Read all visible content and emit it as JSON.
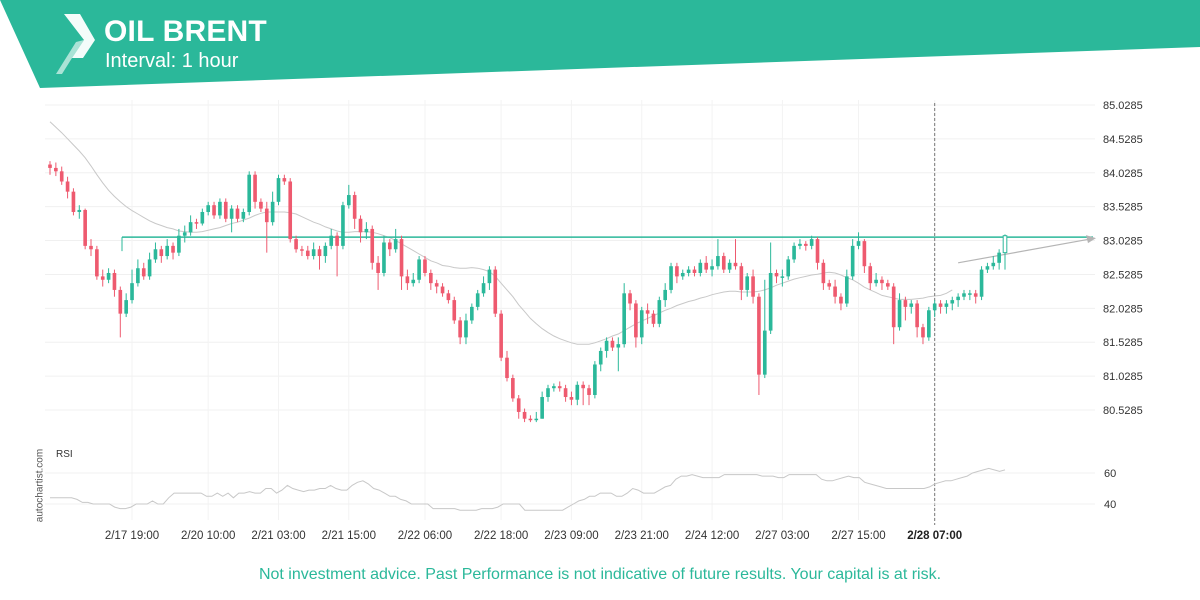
{
  "header": {
    "title": "OIL BRENT",
    "interval": "Interval: 1 hour",
    "brand_color": "#2bb89a",
    "logo": "autochartist-logo"
  },
  "watermark": "autochartist.com",
  "disclaimer": "Not investment advice. Past Performance is not indicative of future results. Your capital is at risk.",
  "chart_data": {
    "type": "candlestick",
    "title": "OIL BRENT",
    "subtitle": "Interval: 1 hour",
    "price_axis": {
      "ticks": [
        "85.0285",
        "84.5285",
        "84.0285",
        "83.5285",
        "83.0285",
        "82.5285",
        "82.0285",
        "81.5285",
        "81.0285",
        "80.5285"
      ],
      "range": [
        80.2,
        85.1
      ]
    },
    "time_axis": {
      "labels": [
        "2/17 19:00",
        "2/20 10:00",
        "2/21 03:00",
        "2/21 15:00",
        "2/22 06:00",
        "2/22 18:00",
        "2/23 09:00",
        "2/23 21:00",
        "2/24 12:00",
        "2/27 03:00",
        "2/27 15:00",
        "2/28 07:00"
      ],
      "label_index": [
        14,
        27,
        39,
        51,
        64,
        77,
        89,
        101,
        113,
        125,
        138,
        151
      ],
      "highlight_label": "2/28 07:00"
    },
    "resistance_level": 83.08,
    "resistance_color": "#2bb89a",
    "projection_target": 83.08,
    "candles": [
      [
        84.15,
        84.1,
        84.2,
        84.0
      ],
      [
        84.1,
        84.05,
        84.18,
        83.98
      ],
      [
        84.05,
        83.9,
        84.12,
        83.85
      ],
      [
        83.9,
        83.75,
        83.97,
        83.65
      ],
      [
        83.75,
        83.45,
        83.8,
        83.4
      ],
      [
        83.45,
        83.48,
        83.55,
        83.35
      ],
      [
        83.48,
        82.95,
        83.5,
        82.9
      ],
      [
        82.95,
        82.9,
        83.05,
        82.8
      ],
      [
        82.9,
        82.5,
        82.95,
        82.45
      ],
      [
        82.5,
        82.45,
        82.6,
        82.35
      ],
      [
        82.45,
        82.55,
        82.62,
        82.4
      ],
      [
        82.55,
        82.3,
        82.6,
        82.2
      ],
      [
        82.3,
        81.95,
        82.35,
        81.6
      ],
      [
        81.95,
        82.15,
        82.25,
        81.9
      ],
      [
        82.15,
        82.4,
        82.6,
        82.1
      ],
      [
        82.4,
        82.62,
        82.75,
        82.35
      ],
      [
        82.62,
        82.5,
        82.7,
        82.45
      ],
      [
        82.5,
        82.75,
        82.85,
        82.45
      ],
      [
        82.75,
        82.9,
        83.0,
        82.7
      ],
      [
        82.9,
        82.8,
        82.95,
        82.7
      ],
      [
        82.8,
        82.95,
        83.05,
        82.75
      ],
      [
        82.95,
        82.85,
        83.0,
        82.75
      ],
      [
        82.85,
        83.1,
        83.2,
        82.8
      ],
      [
        83.1,
        83.15,
        83.25,
        83.0
      ],
      [
        83.15,
        83.3,
        83.4,
        83.1
      ],
      [
        83.3,
        83.28,
        83.35,
        83.2
      ],
      [
        83.28,
        83.45,
        83.5,
        83.25
      ],
      [
        83.45,
        83.55,
        83.6,
        83.4
      ],
      [
        83.55,
        83.4,
        83.6,
        83.35
      ],
      [
        83.4,
        83.6,
        83.65,
        83.35
      ],
      [
        83.6,
        83.35,
        83.65,
        83.3
      ],
      [
        83.35,
        83.5,
        83.55,
        83.15
      ],
      [
        83.5,
        83.35,
        83.55,
        83.3
      ],
      [
        83.35,
        83.45,
        83.5,
        83.3
      ],
      [
        83.45,
        84.0,
        84.05,
        83.4
      ],
      [
        84.0,
        83.6,
        84.05,
        83.5
      ],
      [
        83.6,
        83.5,
        83.65,
        83.45
      ],
      [
        83.5,
        83.3,
        83.6,
        82.85
      ],
      [
        83.3,
        83.6,
        83.75,
        83.25
      ],
      [
        83.6,
        83.95,
        84.0,
        83.55
      ],
      [
        83.95,
        83.9,
        84.0,
        83.85
      ],
      [
        83.9,
        83.05,
        83.95,
        83.0
      ],
      [
        83.05,
        82.9,
        83.1,
        82.85
      ],
      [
        82.9,
        82.88,
        82.95,
        82.8
      ],
      [
        82.88,
        82.8,
        82.95,
        82.75
      ],
      [
        82.8,
        82.9,
        83.0,
        82.75
      ],
      [
        82.9,
        82.8,
        82.95,
        82.6
      ],
      [
        82.8,
        82.95,
        83.0,
        82.7
      ],
      [
        82.95,
        83.1,
        83.2,
        82.9
      ],
      [
        83.1,
        82.95,
        83.15,
        82.5
      ],
      [
        82.95,
        83.55,
        83.6,
        82.9
      ],
      [
        83.55,
        83.7,
        83.85,
        83.5
      ],
      [
        83.7,
        83.35,
        83.75,
        83.2
      ],
      [
        83.35,
        83.15,
        83.4,
        83.0
      ],
      [
        83.15,
        83.2,
        83.3,
        83.05
      ],
      [
        83.2,
        82.7,
        83.25,
        82.6
      ],
      [
        82.7,
        82.55,
        82.8,
        82.3
      ],
      [
        82.55,
        83.0,
        83.1,
        82.5
      ],
      [
        83.0,
        82.9,
        83.05,
        82.8
      ],
      [
        82.9,
        83.05,
        83.2,
        82.85
      ],
      [
        83.05,
        82.5,
        83.1,
        82.3
      ],
      [
        82.5,
        82.4,
        82.6,
        82.3
      ],
      [
        82.4,
        82.45,
        82.55,
        82.35
      ],
      [
        82.45,
        82.75,
        82.8,
        82.4
      ],
      [
        82.75,
        82.55,
        82.8,
        82.5
      ],
      [
        82.55,
        82.4,
        82.6,
        82.3
      ],
      [
        82.4,
        82.35,
        82.45,
        82.25
      ],
      [
        82.35,
        82.25,
        82.4,
        82.2
      ],
      [
        82.25,
        82.15,
        82.3,
        82.1
      ],
      [
        82.15,
        81.85,
        82.2,
        81.8
      ],
      [
        81.85,
        81.6,
        81.9,
        81.5
      ],
      [
        81.6,
        81.85,
        81.95,
        81.5
      ],
      [
        81.85,
        82.05,
        82.1,
        81.8
      ],
      [
        82.05,
        82.25,
        82.3,
        82.0
      ],
      [
        82.25,
        82.4,
        82.5,
        82.2
      ],
      [
        82.4,
        82.6,
        82.65,
        82.3
      ],
      [
        82.6,
        81.95,
        82.65,
        81.9
      ],
      [
        81.95,
        81.3,
        82.0,
        81.25
      ],
      [
        81.3,
        81.0,
        81.4,
        80.95
      ],
      [
        81.0,
        80.7,
        81.05,
        80.65
      ],
      [
        80.7,
        80.5,
        80.75,
        80.4
      ],
      [
        80.5,
        80.4,
        80.55,
        80.35
      ],
      [
        80.4,
        80.38,
        80.45,
        80.35
      ],
      [
        80.38,
        80.4,
        80.5,
        80.35
      ],
      [
        80.4,
        80.72,
        80.8,
        80.4
      ],
      [
        80.72,
        80.85,
        80.9,
        80.65
      ],
      [
        80.85,
        80.88,
        80.92,
        80.8
      ],
      [
        80.88,
        80.85,
        80.95,
        80.8
      ],
      [
        80.85,
        80.72,
        80.9,
        80.65
      ],
      [
        80.72,
        80.68,
        80.8,
        80.6
      ],
      [
        80.68,
        80.9,
        80.95,
        80.6
      ],
      [
        80.9,
        80.85,
        80.95,
        80.6
      ],
      [
        80.85,
        80.75,
        80.9,
        80.6
      ],
      [
        80.75,
        81.2,
        81.25,
        80.7
      ],
      [
        81.2,
        81.4,
        81.45,
        81.1
      ],
      [
        81.4,
        81.55,
        81.6,
        81.3
      ],
      [
        81.55,
        81.45,
        81.6,
        81.4
      ],
      [
        81.45,
        81.5,
        81.6,
        81.1
      ],
      [
        81.5,
        82.25,
        82.4,
        81.45
      ],
      [
        82.25,
        82.1,
        82.3,
        82.0
      ],
      [
        82.1,
        81.6,
        82.15,
        81.45
      ],
      [
        81.6,
        82.0,
        82.05,
        81.5
      ],
      [
        82.0,
        81.95,
        82.1,
        81.8
      ],
      [
        81.95,
        81.8,
        82.0,
        81.75
      ],
      [
        81.8,
        82.15,
        82.2,
        81.75
      ],
      [
        82.15,
        82.3,
        82.4,
        82.05
      ],
      [
        82.3,
        82.65,
        82.7,
        82.25
      ],
      [
        82.65,
        82.5,
        82.7,
        82.4
      ],
      [
        82.5,
        82.55,
        82.6,
        82.45
      ],
      [
        82.55,
        82.6,
        82.65,
        82.5
      ],
      [
        82.6,
        82.55,
        82.65,
        82.5
      ],
      [
        82.55,
        82.7,
        82.75,
        82.5
      ],
      [
        82.7,
        82.6,
        82.8,
        82.55
      ],
      [
        82.6,
        82.65,
        82.75,
        82.5
      ],
      [
        82.65,
        82.8,
        83.05,
        82.6
      ],
      [
        82.8,
        82.6,
        82.85,
        82.55
      ],
      [
        82.6,
        82.7,
        82.75,
        82.55
      ],
      [
        82.7,
        82.65,
        83.05,
        82.6
      ],
      [
        82.65,
        82.3,
        82.7,
        82.15
      ],
      [
        82.3,
        82.5,
        82.55,
        82.2
      ],
      [
        82.5,
        82.2,
        82.6,
        82.1
      ],
      [
        82.2,
        81.05,
        82.25,
        80.75
      ],
      [
        81.05,
        81.7,
        82.45,
        81.0
      ],
      [
        81.7,
        82.55,
        83.0,
        81.65
      ],
      [
        82.55,
        82.5,
        82.6,
        82.4
      ],
      [
        82.5,
        82.5,
        82.6,
        82.35
      ],
      [
        82.5,
        82.75,
        82.8,
        82.45
      ],
      [
        82.75,
        82.95,
        83.0,
        82.7
      ],
      [
        82.95,
        82.98,
        83.05,
        82.9
      ],
      [
        82.98,
        82.95,
        83.02,
        82.88
      ],
      [
        82.95,
        83.05,
        83.1,
        82.9
      ],
      [
        83.05,
        82.7,
        83.08,
        82.6
      ],
      [
        82.7,
        82.4,
        82.75,
        82.3
      ],
      [
        82.4,
        82.35,
        82.45,
        82.3
      ],
      [
        82.35,
        82.2,
        82.45,
        82.1
      ],
      [
        82.2,
        82.1,
        82.25,
        82.0
      ],
      [
        82.1,
        82.5,
        82.6,
        82.05
      ],
      [
        82.5,
        82.95,
        83.05,
        82.45
      ],
      [
        82.95,
        83.02,
        83.15,
        82.9
      ],
      [
        83.02,
        82.65,
        83.05,
        82.55
      ],
      [
        82.65,
        82.4,
        82.7,
        82.3
      ],
      [
        82.4,
        82.45,
        82.55,
        82.35
      ],
      [
        82.45,
        82.4,
        82.5,
        82.3
      ],
      [
        82.4,
        82.35,
        82.45,
        82.3
      ],
      [
        82.35,
        81.75,
        82.4,
        81.5
      ],
      [
        81.75,
        82.15,
        82.25,
        81.7
      ],
      [
        82.15,
        82.05,
        82.2,
        81.85
      ],
      [
        82.05,
        82.1,
        82.15,
        81.95
      ],
      [
        82.1,
        81.75,
        82.15,
        81.6
      ],
      [
        81.75,
        81.6,
        81.8,
        81.5
      ],
      [
        81.6,
        82.0,
        82.05,
        81.55
      ],
      [
        82.0,
        82.1,
        82.15,
        81.9
      ],
      [
        82.1,
        82.05,
        82.15,
        81.95
      ],
      [
        82.05,
        82.1,
        82.15,
        81.95
      ],
      [
        82.1,
        82.15,
        82.2,
        82.0
      ],
      [
        82.15,
        82.2,
        82.25,
        82.05
      ],
      [
        82.2,
        82.25,
        82.3,
        82.15
      ],
      [
        82.25,
        82.25,
        82.3,
        82.15
      ],
      [
        82.25,
        82.2,
        82.3,
        82.1
      ],
      [
        82.2,
        82.6,
        82.65,
        82.15
      ],
      [
        82.6,
        82.65,
        82.7,
        82.55
      ],
      [
        82.65,
        82.7,
        82.8,
        82.6
      ],
      [
        82.7,
        82.85,
        82.9,
        82.6
      ],
      [
        82.85,
        83.1,
        83.12,
        82.6
      ]
    ],
    "moving_average": [
      84.78,
      84.7,
      84.62,
      84.53,
      84.44,
      84.35,
      84.25,
      84.13,
      84.0,
      83.88,
      83.77,
      83.68,
      83.6,
      83.53,
      83.47,
      83.42,
      83.37,
      83.32,
      83.28,
      83.25,
      83.22,
      83.2,
      83.17,
      83.16,
      83.15,
      83.15,
      83.16,
      83.18,
      83.2,
      83.22,
      83.25,
      83.28,
      83.3,
      83.33,
      83.36,
      83.4,
      83.43,
      83.45,
      83.45,
      83.45,
      83.45,
      83.44,
      83.42,
      83.38,
      83.34,
      83.3,
      83.27,
      83.23,
      83.2,
      83.17,
      83.15,
      83.15,
      83.16,
      83.16,
      83.16,
      83.15,
      83.13,
      83.1,
      83.07,
      83.03,
      82.98,
      82.93,
      82.88,
      82.83,
      82.78,
      82.73,
      82.7,
      82.66,
      82.65,
      82.63,
      82.62,
      82.62,
      82.63,
      82.62,
      82.6,
      82.57,
      82.5,
      82.4,
      82.3,
      82.2,
      82.08,
      81.98,
      81.88,
      81.8,
      81.73,
      81.67,
      81.62,
      81.58,
      81.55,
      81.52,
      81.5,
      81.5,
      81.5,
      81.52,
      81.55,
      81.58,
      81.62,
      81.65,
      81.7,
      81.75,
      81.8,
      81.84,
      81.88,
      81.92,
      81.96,
      82.0,
      82.03,
      82.07,
      82.1,
      82.13,
      82.15,
      82.18,
      82.2,
      82.23,
      82.25,
      82.27,
      82.28,
      82.28,
      82.27,
      82.27,
      82.27,
      82.28,
      82.3,
      82.33,
      82.37,
      82.4,
      82.43,
      82.46,
      82.48,
      82.5,
      82.52,
      82.53,
      82.55,
      82.56,
      82.55,
      82.52,
      82.48,
      82.45,
      82.4,
      82.34,
      82.3,
      82.26,
      82.22,
      82.2,
      82.18,
      82.16,
      82.16,
      82.16,
      82.17,
      82.18,
      82.2,
      82.21,
      82.22,
      82.25,
      82.3
    ],
    "rsi": {
      "label": "RSI",
      "ticks": [
        "60",
        "40"
      ],
      "range": [
        25,
        75
      ],
      "values": [
        44,
        44,
        44,
        44,
        44,
        43,
        41,
        41,
        40,
        40,
        40,
        40,
        38,
        37,
        37,
        38,
        40,
        40,
        40,
        42,
        40,
        40,
        44,
        47,
        47,
        47,
        47,
        47,
        47,
        45,
        45,
        47,
        45,
        47,
        44,
        47,
        47,
        48,
        47,
        47,
        50,
        50,
        47,
        49,
        52,
        50,
        49,
        48,
        49,
        49,
        50,
        50,
        52,
        50,
        49,
        49,
        52,
        54,
        55,
        53,
        50,
        49,
        47,
        45,
        45,
        43,
        42,
        40,
        40,
        40,
        40,
        37,
        37,
        37,
        37,
        37,
        36,
        36,
        36,
        36,
        37,
        37,
        37,
        38,
        40,
        40,
        40,
        40,
        36,
        36,
        36,
        36,
        36,
        36,
        36,
        36,
        38,
        40,
        42,
        43,
        45,
        45,
        47,
        47,
        47,
        45,
        45,
        47,
        50,
        49,
        47,
        47,
        47,
        49,
        51,
        52,
        56,
        58,
        58,
        59,
        58,
        57,
        57,
        57,
        57,
        59,
        59,
        59,
        59,
        59,
        59,
        59,
        58,
        58,
        58,
        57,
        57,
        59,
        59,
        59,
        59,
        59,
        59,
        56,
        55,
        55,
        56,
        57,
        58,
        57,
        57,
        54,
        53,
        52,
        51,
        50,
        50,
        50,
        50,
        50,
        50,
        50,
        50,
        51,
        53,
        54,
        55,
        55,
        56,
        57,
        58,
        60,
        61,
        62,
        63,
        62,
        61,
        62
      ]
    }
  }
}
